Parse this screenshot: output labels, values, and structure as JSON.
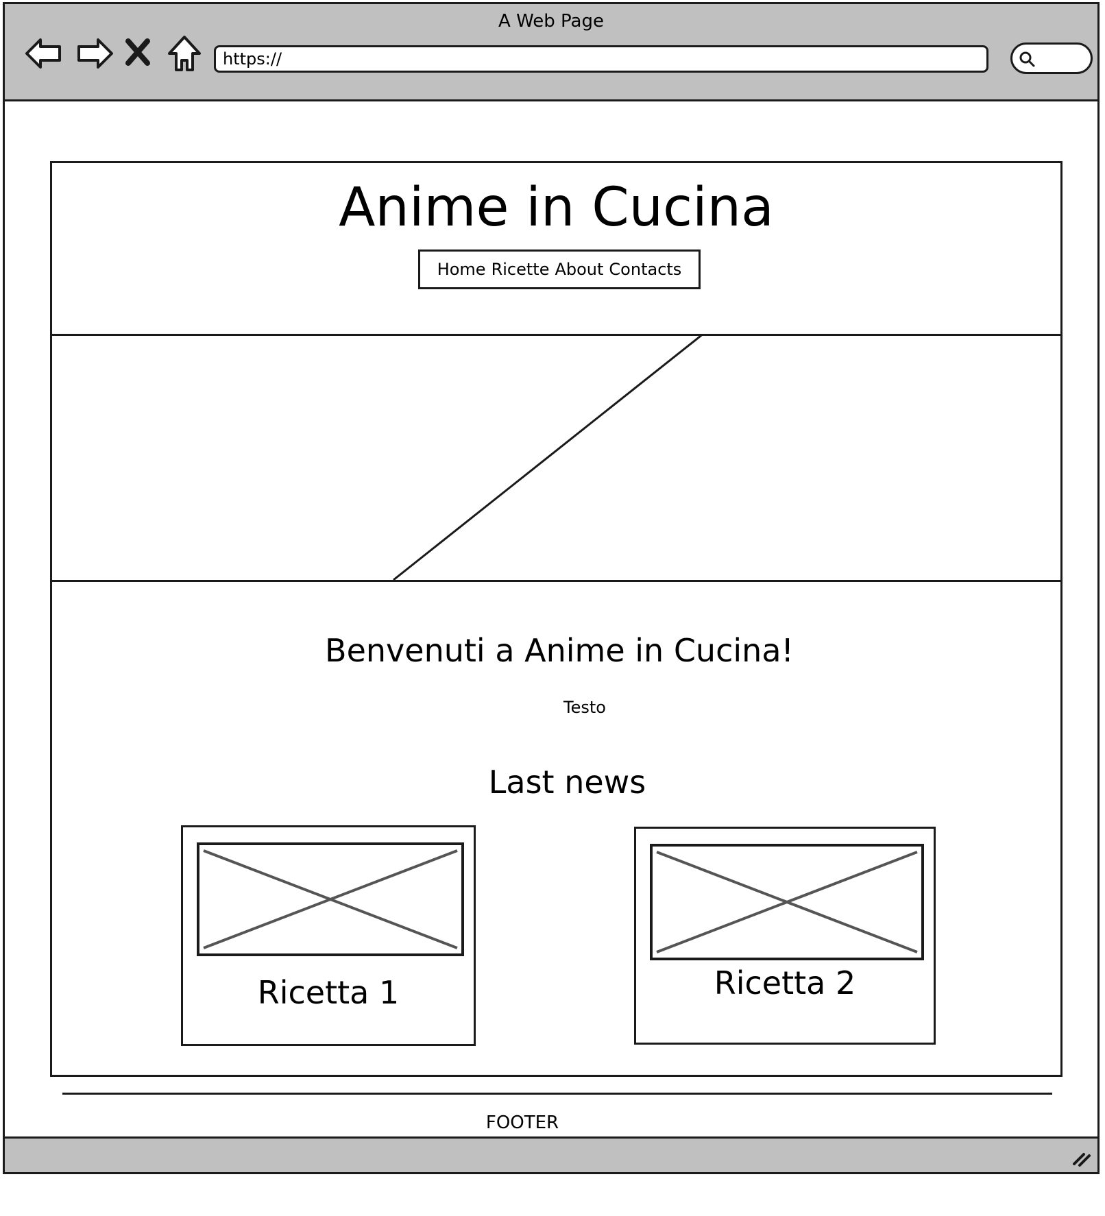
{
  "browser": {
    "window_title": "A Web Page",
    "url": "https://",
    "nav_icons": [
      "back-arrow-icon",
      "forward-arrow-icon",
      "close-icon",
      "home-icon"
    ],
    "search_icon": "search-icon",
    "resize_icon": "resize-grip-icon",
    "chrome_color": "#c0c0c0"
  },
  "header": {
    "title": "Anime in Cucina",
    "nav": [
      "Home",
      "Ricette",
      "About",
      "Contacts"
    ]
  },
  "main": {
    "welcome_title": "Benvenuti a Anime in Cucina!",
    "body_text": "Testo",
    "news_title": "Last news",
    "cards": [
      {
        "label": "Ricetta 1",
        "image_icon": "image-placeholder-icon"
      },
      {
        "label": "Ricetta 2",
        "image_icon": "image-placeholder-icon"
      }
    ]
  },
  "footer": {
    "text": "FOOTER"
  }
}
